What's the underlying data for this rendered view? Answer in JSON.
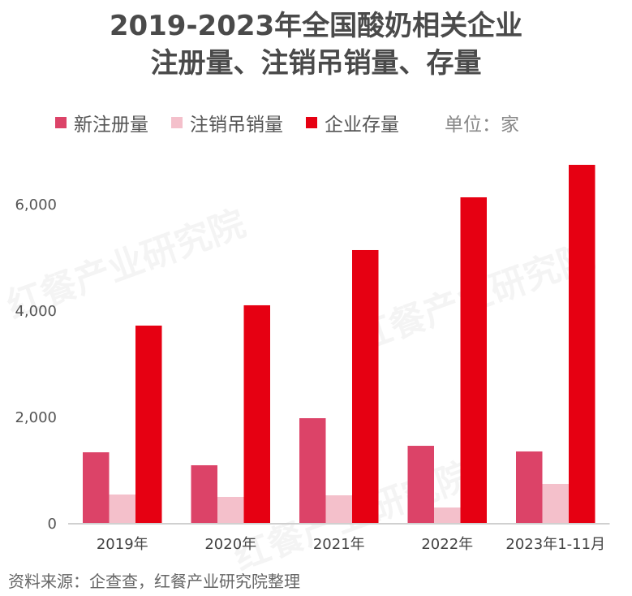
{
  "title_line1": "2019-2023年全国酸奶相关企业",
  "title_line2": "注册量、注销吊销量、存量",
  "unit": "单位：家",
  "source": "资料来源：企查查，红餐产业研究院整理",
  "watermark": "红餐产业研究院",
  "chart_data": {
    "type": "bar",
    "categories": [
      "2019年",
      "2020年",
      "2021年",
      "2022年",
      "2023年1-11月"
    ],
    "series": [
      {
        "name": "新注册量",
        "color": "#dc4368",
        "values": [
          1328,
          1084,
          1969,
          1450,
          1344
        ]
      },
      {
        "name": "注销吊销量",
        "color": "#f4c0cb",
        "values": [
          534,
          489,
          519,
          290,
          733
        ]
      },
      {
        "name": "企业存量",
        "color": "#e60012",
        "values": [
          3710,
          4092,
          5130,
          6122,
          6733
        ]
      }
    ],
    "yticks": [
      0,
      2000,
      4000,
      6000
    ],
    "ytick_labels": [
      "0",
      "2,000",
      "4,000",
      "6,000"
    ],
    "ylim": [
      0,
      7000
    ],
    "grid": false,
    "legend_position": "top"
  }
}
